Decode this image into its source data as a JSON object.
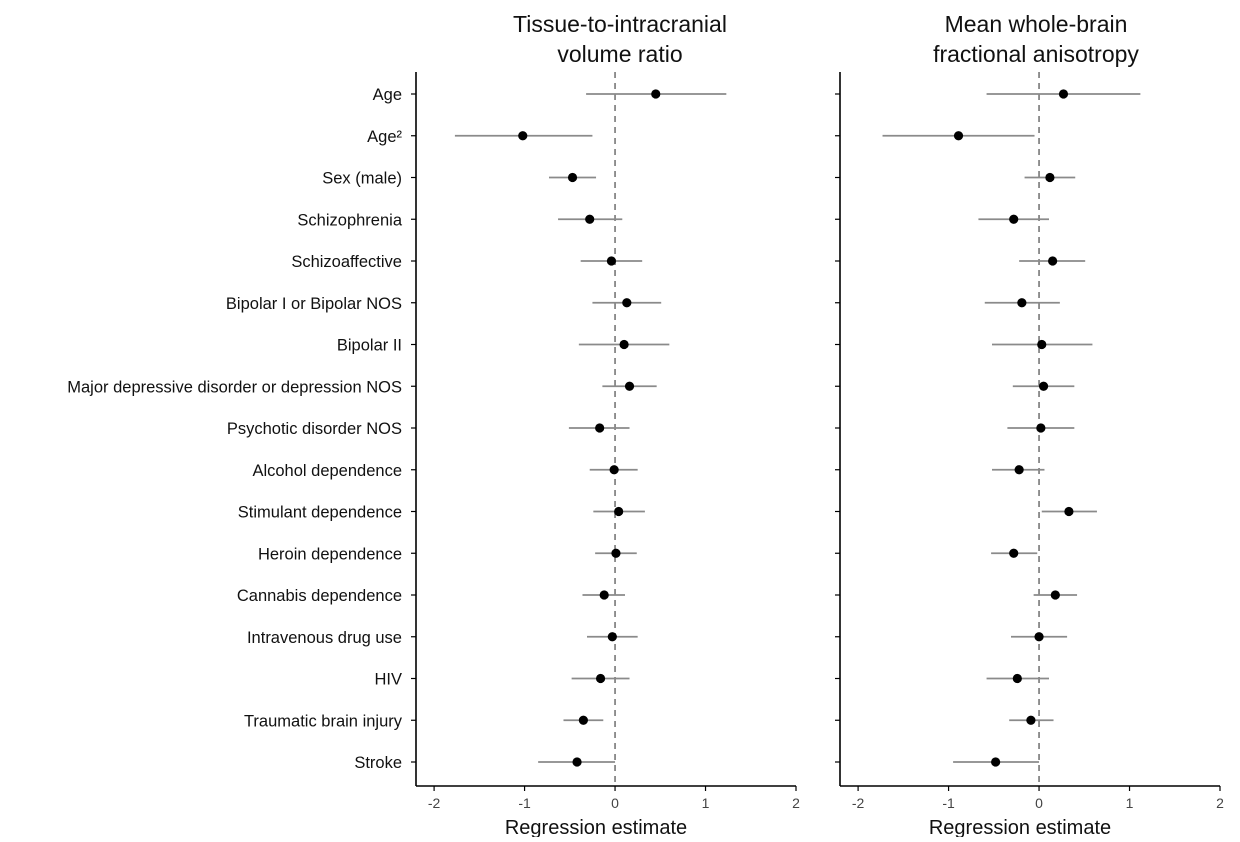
{
  "chart_data": {
    "type": "forest",
    "row_labels": [
      "Age",
      "Age²",
      "Sex (male)",
      "Schizophrenia",
      "Schizoaffective",
      "Bipolar I or Bipolar NOS",
      "Bipolar II",
      "Major depressive disorder or depression NOS",
      "Psychotic disorder NOS",
      "Alcohol dependence",
      "Stimulant dependence",
      "Heroin dependence",
      "Cannabis dependence",
      "Intravenous drug use",
      "HIV",
      "Traumatic brain injury",
      "Stroke"
    ],
    "xlim": [
      -2.2,
      2.0
    ],
    "x_ticks": [
      "-2",
      "-1",
      "0",
      "1",
      "2"
    ],
    "reference_line": 0,
    "panels": [
      {
        "title_lines": [
          "Tissue-to-intracranial",
          "volume ratio"
        ],
        "xlabel": "Regression estimate",
        "estimates": [
          0.45,
          -1.02,
          -0.47,
          -0.28,
          -0.04,
          0.13,
          0.1,
          0.16,
          -0.17,
          -0.01,
          0.04,
          0.01,
          -0.12,
          -0.03,
          -0.16,
          -0.35,
          -0.42
        ],
        "ci_low": [
          -0.32,
          -1.77,
          -0.73,
          -0.63,
          -0.38,
          -0.25,
          -0.4,
          -0.14,
          -0.51,
          -0.28,
          -0.24,
          -0.22,
          -0.36,
          -0.31,
          -0.48,
          -0.57,
          -0.85
        ],
        "ci_high": [
          1.23,
          -0.25,
          -0.21,
          0.08,
          0.3,
          0.51,
          0.6,
          0.46,
          0.16,
          0.25,
          0.33,
          0.24,
          0.11,
          0.25,
          0.16,
          -0.13,
          0.0
        ]
      },
      {
        "title_lines": [
          "Mean whole-brain",
          "fractional anisotropy"
        ],
        "xlabel": "Regression estimate",
        "estimates": [
          0.27,
          -0.89,
          0.12,
          -0.28,
          0.15,
          -0.19,
          0.03,
          0.05,
          0.02,
          -0.22,
          0.33,
          -0.28,
          0.18,
          0.0,
          -0.24,
          -0.09,
          -0.48
        ],
        "ci_low": [
          -0.58,
          -1.73,
          -0.16,
          -0.67,
          -0.22,
          -0.6,
          -0.52,
          -0.29,
          -0.35,
          -0.52,
          0.03,
          -0.53,
          -0.06,
          -0.31,
          -0.58,
          -0.33,
          -0.95
        ],
        "ci_high": [
          1.12,
          -0.05,
          0.4,
          0.11,
          0.51,
          0.23,
          0.59,
          0.39,
          0.39,
          0.06,
          0.64,
          -0.02,
          0.42,
          0.31,
          0.11,
          0.16,
          0.0
        ]
      }
    ],
    "colors": {
      "point": "#000000",
      "interval": "#8a8a8a",
      "reference": "#777777",
      "axis": "#000000"
    }
  }
}
